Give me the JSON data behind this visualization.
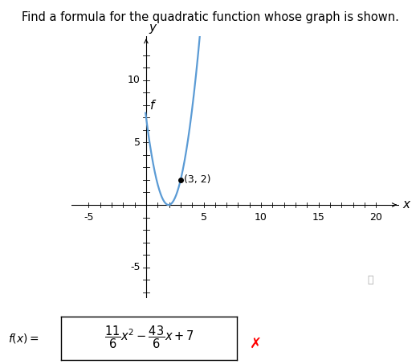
{
  "title": "Find a formula for the quadratic function whose graph is shown.",
  "title_fontsize": 10.5,
  "xlim": [
    -6.5,
    22
  ],
  "ylim": [
    -7.5,
    13.5
  ],
  "xticks": [
    -5,
    5,
    10,
    15,
    20
  ],
  "yticks": [
    -5,
    5,
    10
  ],
  "curve_color": "#5b9bd5",
  "curve_linewidth": 1.6,
  "point": [
    3,
    2
  ],
  "point_label": "(3, 2)",
  "curve_label": "f",
  "background_color": "#ffffff",
  "info_circle_color": "#888888",
  "x_curve_start": -0.05,
  "x_curve_end": 5.55,
  "tick_minor_every": 1,
  "formula_y_pos": 0.09
}
